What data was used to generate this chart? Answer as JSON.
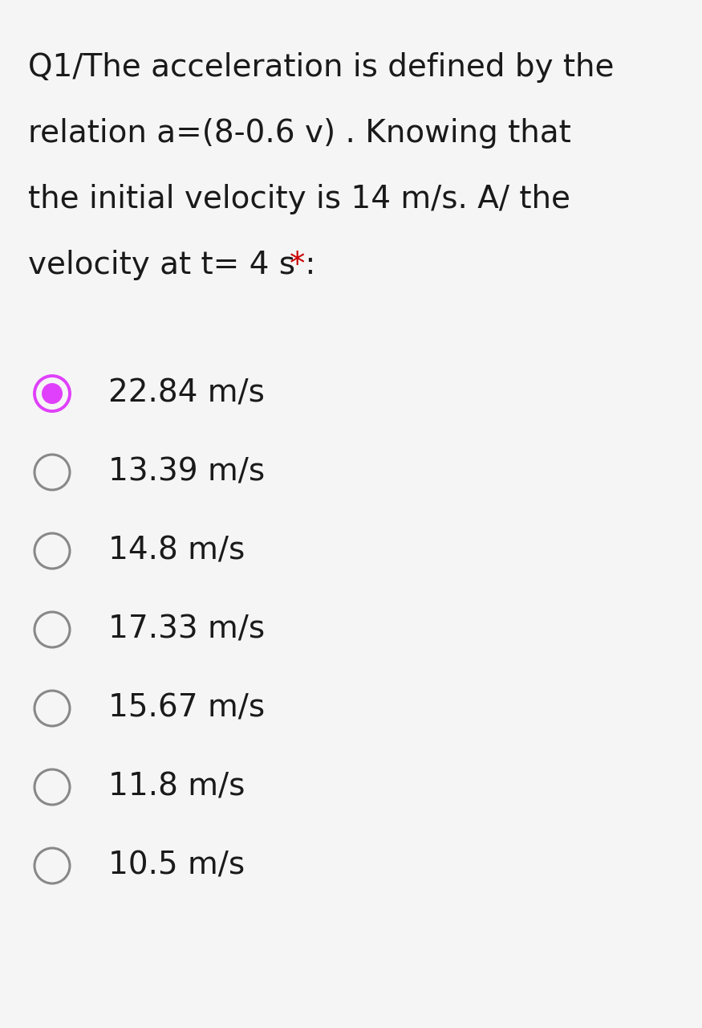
{
  "background_color": "#f5f5f5",
  "question_lines": [
    "Q1/The acceleration is defined by the",
    "relation a=(8-0.6 v) . Knowing that",
    "the initial velocity is 14 m/s. A/ the",
    "velocity at t= 4 s : "
  ],
  "asterisk": "*",
  "options": [
    "22.84 m/s",
    "13.39 m/s",
    "14.8 m/s",
    "17.33 m/s",
    "15.67 m/s",
    "11.8 m/s",
    "10.5 m/s"
  ],
  "selected_index": 0,
  "selected_color": "#e040fb",
  "unselected_color": "#888888",
  "text_color": "#1a1a1a",
  "asterisk_color": "#cc0000",
  "question_fontsize": 28,
  "option_fontsize": 28,
  "fig_width": 8.75,
  "fig_height": 12.8
}
